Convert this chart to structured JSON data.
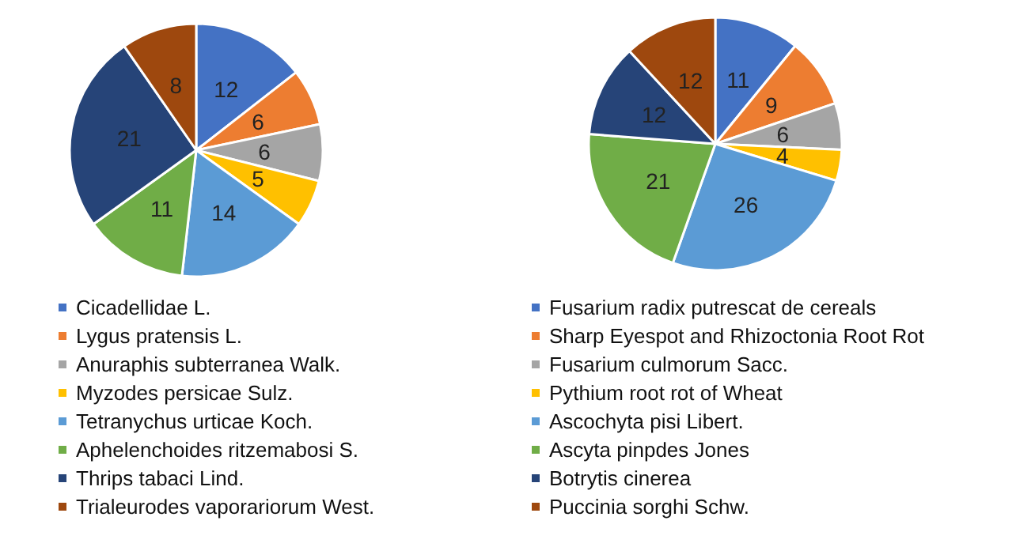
{
  "chart_data": [
    {
      "type": "pie",
      "categories": [
        "Cicadellidae L.",
        "Lygus pratensis L.",
        "Anuraphis subterranea Walk.",
        "Myzodes persicae Sulz.",
        "Tetranychus urticae Koch.",
        "Aphelenchoides ritzemabosi S.",
        "Thrips tabaci Lind.",
        "Trialeurodes vaporariorum West."
      ],
      "values": [
        12,
        6,
        6,
        5,
        14,
        11,
        21,
        8
      ],
      "colors": [
        "#4472c4",
        "#ed7d31",
        "#a5a5a5",
        "#ffc000",
        "#5b9bd5",
        "#70ad47",
        "#264478",
        "#9e480e"
      ],
      "data_labels": true,
      "legend": "bottom"
    },
    {
      "type": "pie",
      "categories": [
        "Fusarium radix putrescat de cereals",
        "Sharp Eyespot and Rhizoctonia Root Rot",
        "Fusarium culmorum Sacc.",
        "Pythium root rot of Wheat",
        "Ascochyta pisi Libert.",
        "Ascyta pinpdes Jones",
        "Botrytis cinerea",
        "Puccinia sorghi Schw."
      ],
      "values": [
        11,
        9,
        6,
        4,
        26,
        21,
        12,
        12
      ],
      "colors": [
        "#4472c4",
        "#ed7d31",
        "#a5a5a5",
        "#ffc000",
        "#5b9bd5",
        "#70ad47",
        "#264478",
        "#9e480e"
      ],
      "data_labels": true,
      "legend": "bottom"
    }
  ]
}
